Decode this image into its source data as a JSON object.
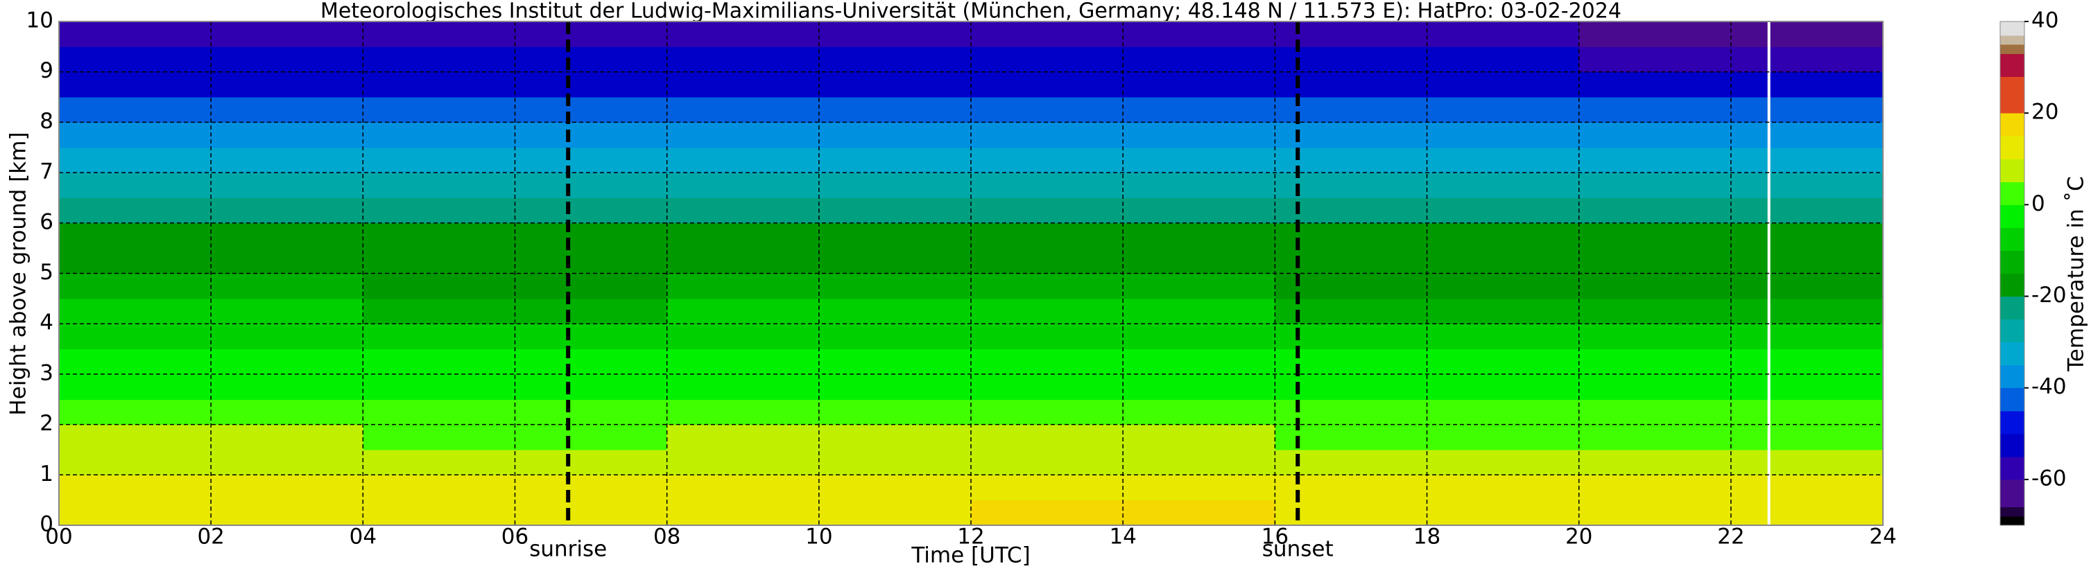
{
  "chart_data": {
    "type": "heatmap",
    "title": "Meteorologisches Institut der Ludwig-Maximilians-Universität (München, Germany; 48.148 N / 11.573 E):    HatPro: 03-02-2024",
    "x_label": "Time [UTC]",
    "y_label": "Height above ground [km]",
    "x_bins": [
      0,
      4,
      8,
      12,
      16,
      20,
      24
    ],
    "y_bins": [
      0,
      0.5,
      1,
      1.5,
      2,
      2.5,
      3,
      3.5,
      4,
      4.5,
      5,
      5.5,
      6,
      6.5,
      7,
      7.5,
      8,
      8.5,
      9,
      9.5,
      10
    ],
    "values": [
      [
        13,
        12,
        14,
        16,
        12,
        12
      ],
      [
        11,
        11,
        11,
        12,
        10,
        10
      ],
      [
        8,
        8,
        8,
        8,
        7,
        7
      ],
      [
        5,
        4,
        5,
        5,
        4,
        4
      ],
      [
        1,
        1,
        1,
        1,
        0,
        1
      ],
      [
        -2,
        -2,
        -2,
        -2,
        -3,
        -2
      ],
      [
        -4,
        -4,
        -4,
        -4,
        -5,
        -4
      ],
      [
        -6,
        -7,
        -6,
        -6,
        -7,
        -7
      ],
      [
        -9,
        -11,
        -10,
        -9,
        -11,
        -11
      ],
      [
        -12,
        -16,
        -14,
        -13,
        -16,
        -16
      ],
      [
        -16,
        -17,
        -17,
        -16,
        -17,
        -17
      ],
      [
        -17,
        -18,
        -18,
        -17,
        -18,
        -18
      ],
      [
        -25,
        -24,
        -24,
        -24,
        -25,
        -25
      ],
      [
        -30,
        -29,
        -29,
        -29,
        -30,
        -30
      ],
      [
        -34,
        -33,
        -33,
        -33,
        -34,
        -34
      ],
      [
        -38,
        -37,
        -37,
        -37,
        -38,
        -38
      ],
      [
        -42,
        -41,
        -41,
        -41,
        -42,
        -42
      ],
      [
        -52,
        -52,
        -52,
        -52,
        -52,
        -52
      ],
      [
        -54,
        -54,
        -54,
        -54,
        -54,
        -56
      ],
      [
        -58,
        -58,
        -58,
        -58,
        -58,
        -61
      ]
    ],
    "xlim": [
      0,
      24
    ],
    "ylim": [
      0,
      10
    ],
    "xticks": [
      {
        "value": 0,
        "label": "00"
      },
      {
        "value": 2,
        "label": "02"
      },
      {
        "value": 4,
        "label": "04"
      },
      {
        "value": 6,
        "label": "06"
      },
      {
        "value": 8,
        "label": "08"
      },
      {
        "value": 10,
        "label": "10"
      },
      {
        "value": 12,
        "label": "12"
      },
      {
        "value": 14,
        "label": "14"
      },
      {
        "value": 16,
        "label": "16"
      },
      {
        "value": 18,
        "label": "18"
      },
      {
        "value": 20,
        "label": "20"
      },
      {
        "value": 22,
        "label": "22"
      },
      {
        "value": 24,
        "label": "24"
      }
    ],
    "yticks": [
      0,
      1,
      2,
      3,
      4,
      5,
      6,
      7,
      8,
      9,
      10
    ],
    "grid": true,
    "annotations": [
      {
        "label": "sunrise",
        "x": 6.7
      },
      {
        "label": "sunset",
        "x": 16.3
      }
    ],
    "gap_x": 22.5,
    "colorbar": {
      "label": "Temperature in ˚C",
      "lim": [
        -70,
        40
      ],
      "ticks": [
        -60,
        -40,
        -20,
        0,
        20,
        40
      ],
      "bounds": [
        -70,
        -68,
        -66,
        -60,
        -55,
        -50,
        -45,
        -40,
        -35,
        -30,
        -25,
        -20,
        -15,
        -10,
        -5,
        0,
        5,
        10,
        15,
        20,
        28,
        33,
        35,
        37,
        40
      ],
      "colors": [
        "#000000",
        "#200040",
        "#4a0a90",
        "#3000b0",
        "#0000c8",
        "#0010e0",
        "#0060e0",
        "#0090e0",
        "#00a8d0",
        "#00a8a8",
        "#00a080",
        "#009a00",
        "#00b000",
        "#00d000",
        "#00f000",
        "#40ff00",
        "#c0f000",
        "#e8e800",
        "#f5d800",
        "#e04820",
        "#b0103c",
        "#a07040",
        "#c8b8a0",
        "#e0e0e0"
      ]
    }
  }
}
